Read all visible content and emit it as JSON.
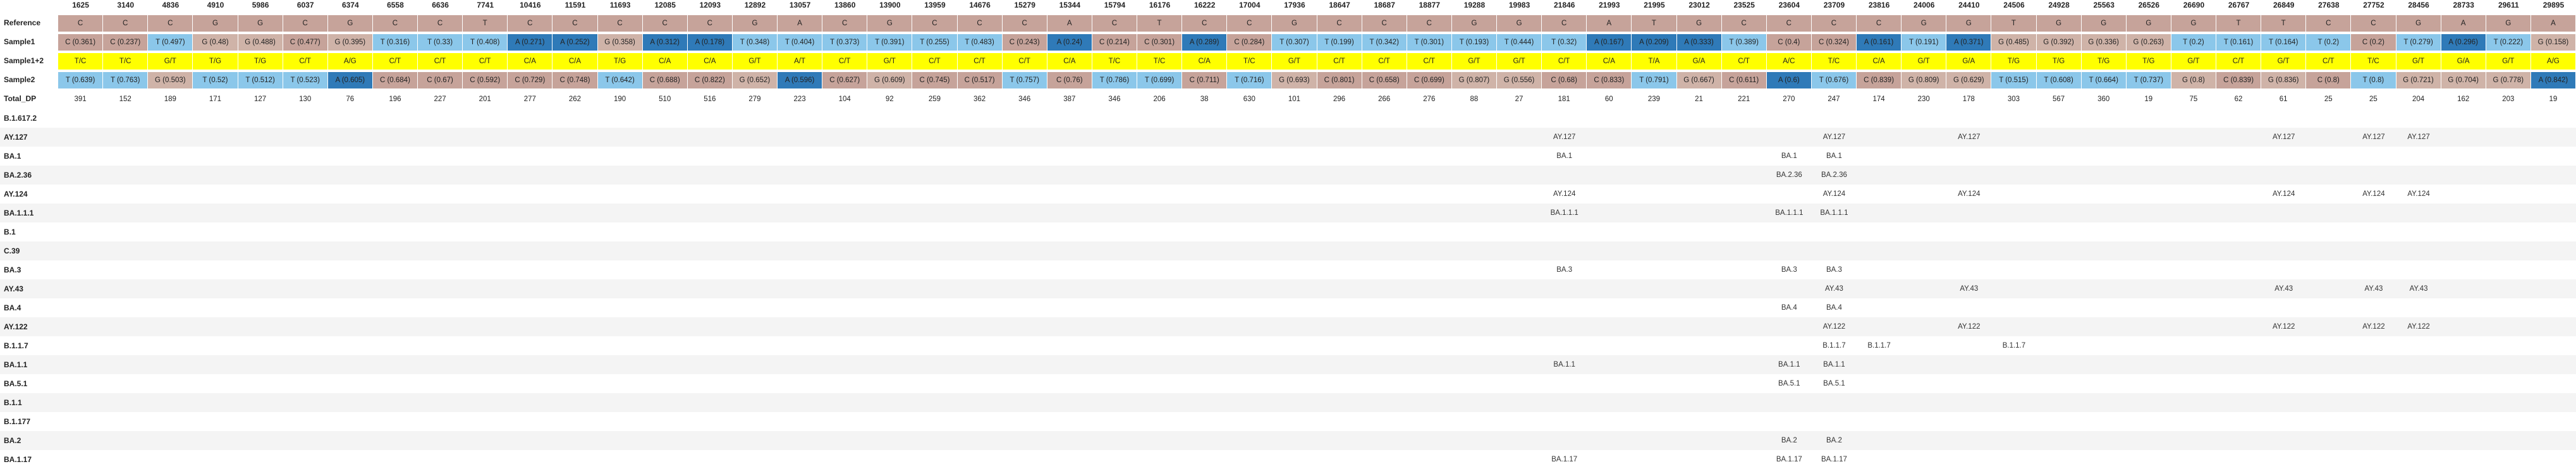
{
  "columns": [
    "1625",
    "3140",
    "4836",
    "4910",
    "5986",
    "6037",
    "6374",
    "6558",
    "6636",
    "7741",
    "10416",
    "11591",
    "11693",
    "12085",
    "12093",
    "12892",
    "13057",
    "13860",
    "13900",
    "13959",
    "14676",
    "15279",
    "15344",
    "15794",
    "16176",
    "16222",
    "17004",
    "17936",
    "18647",
    "18687",
    "18877",
    "19288",
    "19983",
    "21846",
    "21993",
    "21995",
    "23012",
    "23525",
    "23604",
    "23709",
    "23816",
    "24006",
    "24410",
    "24506",
    "24928",
    "25563",
    "26526",
    "26690",
    "26767",
    "26849",
    "27638",
    "27752",
    "28456",
    "28733",
    "29611",
    "29895"
  ],
  "row_labels": {
    "reference": "Reference",
    "sample1": "Sample1",
    "sample12": "Sample1+2",
    "sample2": "Sample2",
    "total_dp": "Total_DP"
  },
  "reference": [
    "C",
    "C",
    "C",
    "G",
    "G",
    "C",
    "G",
    "C",
    "C",
    "T",
    "C",
    "C",
    "C",
    "C",
    "C",
    "G",
    "A",
    "C",
    "G",
    "C",
    "C",
    "C",
    "A",
    "C",
    "T",
    "C",
    "C",
    "G",
    "C",
    "C",
    "C",
    "G",
    "G",
    "C",
    "A",
    "T",
    "G",
    "C",
    "C",
    "C",
    "C",
    "G",
    "G",
    "T",
    "G",
    "G",
    "G",
    "G",
    "T",
    "T",
    "C",
    "C",
    "G",
    "A",
    "G",
    "A"
  ],
  "sample1": [
    "C (0.361)",
    "C (0.237)",
    "T (0.497)",
    "G (0.48)",
    "G (0.488)",
    "C (0.477)",
    "G (0.395)",
    "T (0.316)",
    "T (0.33)",
    "T (0.408)",
    "A (0.271)",
    "A (0.252)",
    "G (0.358)",
    "A (0.312)",
    "A (0.178)",
    "T (0.348)",
    "T (0.404)",
    "T (0.373)",
    "T (0.391)",
    "T (0.255)",
    "T (0.483)",
    "C (0.243)",
    "A (0.24)",
    "C (0.214)",
    "C (0.301)",
    "A (0.289)",
    "C (0.284)",
    "T (0.307)",
    "T (0.199)",
    "T (0.342)",
    "T (0.301)",
    "T (0.193)",
    "T (0.444)",
    "T (0.32)",
    "A (0.167)",
    "A (0.209)",
    "A (0.333)",
    "T (0.389)",
    "C (0.4)",
    "C (0.324)",
    "A (0.161)",
    "T (0.191)",
    "A (0.371)",
    "G (0.485)",
    "G (0.392)",
    "G (0.336)",
    "G (0.263)",
    "T (0.2)",
    "T (0.161)",
    "T (0.164)",
    "T (0.2)",
    "C (0.2)",
    "T (0.279)",
    "A (0.296)",
    "T (0.222)",
    "G (0.158)"
  ],
  "sample12": [
    "T/C",
    "T/C",
    "G/T",
    "T/G",
    "T/G",
    "C/T",
    "A/G",
    "C/T",
    "C/T",
    "C/T",
    "C/A",
    "C/A",
    "T/G",
    "C/A",
    "C/A",
    "G/T",
    "A/T",
    "C/T",
    "G/T",
    "C/T",
    "C/T",
    "C/T",
    "C/A",
    "T/C",
    "T/C",
    "C/A",
    "T/C",
    "G/T",
    "C/T",
    "C/T",
    "C/T",
    "G/T",
    "G/T",
    "C/T",
    "C/A",
    "T/A",
    "G/A",
    "C/T",
    "A/C",
    "T/C",
    "C/A",
    "G/T",
    "G/A",
    "T/G",
    "T/G",
    "T/G",
    "T/G",
    "G/T",
    "C/T",
    "G/T",
    "C/T",
    "T/C",
    "G/T",
    "G/A",
    "G/T",
    "A/G"
  ],
  "sample2": [
    "T (0.639)",
    "T (0.763)",
    "G (0.503)",
    "T (0.52)",
    "T (0.512)",
    "T (0.523)",
    "A (0.605)",
    "C (0.684)",
    "C (0.67)",
    "C (0.592)",
    "C (0.729)",
    "C (0.748)",
    "T (0.642)",
    "C (0.688)",
    "C (0.822)",
    "G (0.652)",
    "A (0.596)",
    "C (0.627)",
    "G (0.609)",
    "C (0.745)",
    "C (0.517)",
    "T (0.757)",
    "C (0.76)",
    "T (0.786)",
    "T (0.699)",
    "C (0.711)",
    "T (0.716)",
    "G (0.693)",
    "C (0.801)",
    "C (0.658)",
    "C (0.699)",
    "G (0.807)",
    "G (0.556)",
    "C (0.68)",
    "C (0.833)",
    "T (0.791)",
    "G (0.667)",
    "C (0.611)",
    "A (0.6)",
    "T (0.676)",
    "C (0.839)",
    "G (0.809)",
    "G (0.629)",
    "T (0.515)",
    "T (0.608)",
    "T (0.664)",
    "T (0.737)",
    "G (0.8)",
    "C (0.839)",
    "G (0.836)",
    "C (0.8)",
    "T (0.8)",
    "G (0.721)",
    "G (0.704)",
    "G (0.778)",
    "A (0.842)"
  ],
  "total_dp": [
    "391",
    "152",
    "189",
    "171",
    "127",
    "130",
    "76",
    "196",
    "227",
    "201",
    "277",
    "262",
    "190",
    "510",
    "516",
    "279",
    "223",
    "104",
    "92",
    "259",
    "362",
    "346",
    "387",
    "346",
    "206",
    "38",
    "630",
    "101",
    "296",
    "266",
    "276",
    "88",
    "27",
    "181",
    "60",
    "239",
    "21",
    "221",
    "270",
    "247",
    "174",
    "230",
    "178",
    "303",
    "567",
    "360",
    "19",
    "75",
    "62",
    "61",
    "25",
    "25",
    "204",
    "162",
    "203",
    "19"
  ],
  "lineages": [
    {
      "name": "B.1.617.2",
      "marks": {}
    },
    {
      "name": "AY.127",
      "marks": {
        "33": "AY.127",
        "39": "AY.127",
        "42": "AY.127",
        "49": "AY.127",
        "51": "AY.127",
        "52": "AY.127"
      }
    },
    {
      "name": "BA.1",
      "marks": {
        "33": "BA.1",
        "38": "BA.1",
        "39": "BA.1"
      }
    },
    {
      "name": "BA.2.36",
      "marks": {
        "38": "BA.2.36",
        "39": "BA.2.36"
      }
    },
    {
      "name": "AY.124",
      "marks": {
        "33": "AY.124",
        "39": "AY.124",
        "42": "AY.124",
        "49": "AY.124",
        "51": "AY.124",
        "52": "AY.124"
      }
    },
    {
      "name": "BA.1.1.1",
      "marks": {
        "33": "BA.1.1.1",
        "38": "BA.1.1.1",
        "39": "BA.1.1.1"
      }
    },
    {
      "name": "B.1",
      "marks": {}
    },
    {
      "name": "C.39",
      "marks": {}
    },
    {
      "name": "BA.3",
      "marks": {
        "33": "BA.3",
        "38": "BA.3",
        "39": "BA.3"
      }
    },
    {
      "name": "AY.43",
      "marks": {
        "39": "AY.43",
        "42": "AY.43",
        "49": "AY.43",
        "51": "AY.43",
        "52": "AY.43"
      }
    },
    {
      "name": "BA.4",
      "marks": {
        "38": "BA.4",
        "39": "BA.4"
      }
    },
    {
      "name": "AY.122",
      "marks": {
        "39": "AY.122",
        "42": "AY.122",
        "49": "AY.122",
        "51": "AY.122",
        "52": "AY.122"
      }
    },
    {
      "name": "B.1.1.7",
      "marks": {
        "39": "B.1.1.7",
        "40": "B.1.1.7",
        "43": "B.1.1.7"
      }
    },
    {
      "name": "BA.1.1",
      "marks": {
        "33": "BA.1.1",
        "38": "BA.1.1",
        "39": "BA.1.1"
      }
    },
    {
      "name": "BA.5.1",
      "marks": {
        "38": "BA.5.1",
        "39": "BA.5.1"
      }
    },
    {
      "name": "B.1.1",
      "marks": {}
    },
    {
      "name": "B.1.177",
      "marks": {}
    },
    {
      "name": "BA.2",
      "marks": {
        "38": "BA.2",
        "39": "BA.2"
      }
    },
    {
      "name": "BA.1.17",
      "marks": {
        "33": "BA.1.17",
        "38": "BA.1.17",
        "39": "BA.1.17"
      }
    }
  ],
  "colors": {
    "reference": "#c6a39a",
    "sample12": "#ffff00",
    "base_C": "#c6a39a",
    "base_T": "#8bc7ea",
    "base_G": "#cfb3a8",
    "base_A": "#2f7ab8",
    "total_dp": "#ffffff",
    "reference_gray": "#b7b7b7",
    "row_stripe": "#f4f4f4",
    "highlight_red": "#d9534f",
    "highlight_green": "#7fbf5b"
  }
}
